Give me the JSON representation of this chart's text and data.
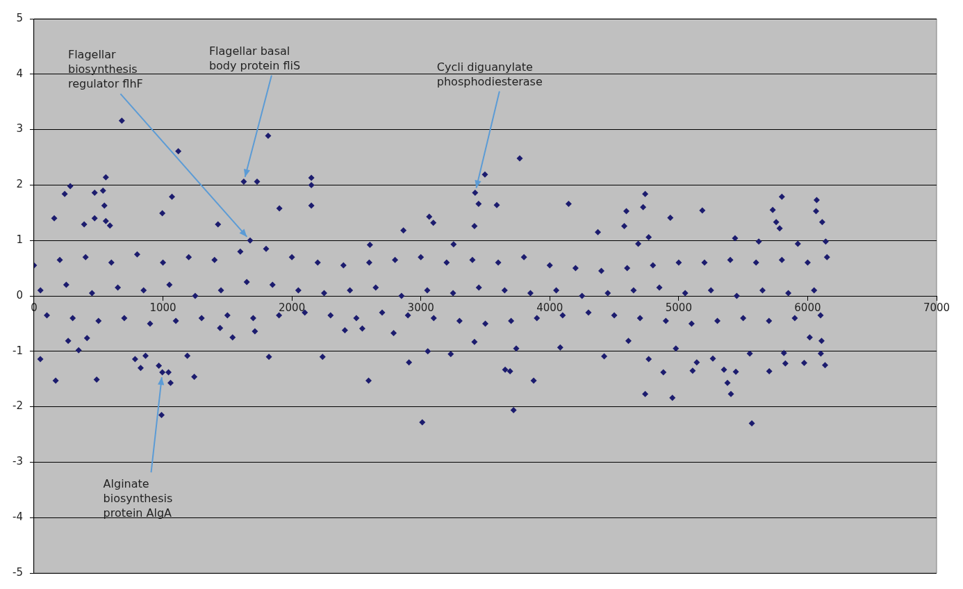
{
  "chart_data": {
    "type": "scatter",
    "marker": "diamond",
    "grid": "y",
    "legend": false,
    "xlim": [
      0,
      7000
    ],
    "xticks": [
      0,
      1000,
      2000,
      3000,
      4000,
      5000,
      6000,
      7000
    ],
    "ylim": [
      -5,
      5
    ],
    "yticks": [
      -5,
      -4,
      -3,
      -2,
      -1,
      0,
      1,
      2,
      3,
      4,
      5
    ],
    "annotations": [
      {
        "text": "Flagellar biosynthesis regulator flhF",
        "x": 1676,
        "y": 1.0
      },
      {
        "text": "Flagellar basal body protein fliS",
        "x": 1627,
        "y": 2.06
      },
      {
        "text": "Cycli diguanylate phosphodiesterase",
        "x": 3421,
        "y": 1.86
      },
      {
        "text": "Alginate biosynthesis protein AlgA",
        "x": 995,
        "y": -1.38
      }
    ],
    "series": [
      {
        "color": "#1c1c6e",
        "x": [
          681,
          1119,
          1816,
          1627,
          1730,
          2151,
          2151,
          2151,
          281,
          238,
          470,
          535,
          557,
          546,
          557,
          589,
          1070,
          995,
          157,
          389,
          470,
          1903,
          1427,
          3497,
          3767,
          3421,
          3448,
          3589,
          3416,
          3065,
          3097,
          2865,
          3254,
          4146,
          4578,
          4594,
          4724,
          4740,
          4935,
          5183,
          5437,
          5621,
          5756,
          5729,
          5800,
          5783,
          6070,
          6065,
          6113,
          4686,
          4767,
          4373,
          5924,
          6140,
          2605,
          1676,
          49,
          168,
          486,
          411,
          265,
          346,
          784,
          827,
          865,
          968,
          995,
          1043,
          1059,
          989,
          1243,
          1822,
          2238,
          1189,
          3011,
          2595,
          2908,
          3054,
          3719,
          3654,
          3692,
          3740,
          3875,
          4081,
          4422,
          4740,
          4767,
          4951,
          4881,
          5108,
          5140,
          5265,
          5351,
          5378,
          5405,
          5443,
          5567,
          5702,
          5816,
          5827,
          5973,
          6102,
          6108,
          6135,
          6016,
          5551,
          4978,
          4610,
          3232,
          3416,
          2789,
          2411,
          2546,
          1443,
          1540,
          1713,
          0,
          200,
          400,
          600,
          800,
          1000,
          1200,
          1400,
          1600,
          1800,
          2000,
          2200,
          2400,
          2600,
          2800,
          3000,
          3200,
          3400,
          3600,
          3800,
          4000,
          4200,
          4400,
          4600,
          4800,
          5000,
          5200,
          5400,
          5600,
          5800,
          6000,
          6150,
          100,
          300,
          500,
          700,
          900,
          1100,
          1300,
          1500,
          1700,
          1900,
          2100,
          2300,
          2500,
          2700,
          2900,
          3100,
          3300,
          3500,
          3700,
          3900,
          4100,
          4300,
          4500,
          4700,
          4900,
          5100,
          5300,
          5500,
          5700,
          5900,
          6100,
          50,
          250,
          450,
          650,
          850,
          1050,
          1250,
          1450,
          1650,
          1850,
          2050,
          2250,
          2450,
          2650,
          2850,
          3050,
          3250,
          3450,
          3650,
          3850,
          4050,
          4250,
          4450,
          4650,
          4850,
          5050,
          5250,
          5450,
          5650,
          5850,
          6050
        ],
        "values": [
          3.16,
          2.61,
          2.89,
          2.06,
          2.06,
          2.13,
          2.0,
          1.63,
          1.98,
          1.84,
          1.86,
          1.9,
          2.14,
          1.63,
          1.35,
          1.27,
          1.79,
          1.49,
          1.4,
          1.29,
          1.4,
          1.58,
          1.29,
          2.19,
          2.48,
          1.86,
          1.66,
          1.64,
          1.26,
          1.43,
          1.32,
          1.18,
          0.93,
          1.66,
          1.26,
          1.53,
          1.6,
          1.84,
          1.41,
          1.54,
          1.04,
          0.98,
          1.33,
          1.55,
          1.79,
          1.22,
          1.73,
          1.53,
          1.33,
          0.94,
          1.06,
          1.15,
          0.94,
          0.98,
          0.92,
          1.0,
          -1.14,
          -1.53,
          -1.51,
          -0.76,
          -0.81,
          -0.98,
          -1.14,
          -1.3,
          -1.08,
          -1.26,
          -1.38,
          -1.38,
          -1.57,
          -2.15,
          -1.46,
          -1.1,
          -1.1,
          -1.08,
          -2.28,
          -1.53,
          -1.2,
          -1.0,
          -2.06,
          -1.33,
          -1.36,
          -0.95,
          -1.53,
          -0.93,
          -1.09,
          -1.77,
          -1.14,
          -1.84,
          -1.38,
          -1.35,
          -1.2,
          -1.13,
          -1.33,
          -1.57,
          -1.77,
          -1.37,
          -2.3,
          -1.36,
          -1.03,
          -1.22,
          -1.21,
          -1.04,
          -0.81,
          -1.25,
          -0.75,
          -1.04,
          -0.95,
          -0.81,
          -1.05,
          -0.83,
          -0.67,
          -0.62,
          -0.59,
          -0.58,
          -0.75,
          -0.64,
          0.55,
          0.65,
          0.7,
          0.6,
          0.75,
          0.6,
          0.7,
          0.65,
          0.8,
          0.85,
          0.7,
          0.6,
          0.55,
          0.6,
          0.65,
          0.7,
          0.6,
          0.65,
          0.6,
          0.7,
          0.55,
          0.5,
          0.45,
          0.5,
          0.55,
          0.6,
          0.6,
          0.65,
          0.6,
          0.65,
          0.6,
          0.7,
          -0.35,
          -0.4,
          -0.45,
          -0.4,
          -0.5,
          -0.45,
          -0.4,
          -0.35,
          -0.4,
          -0.35,
          -0.3,
          -0.35,
          -0.4,
          -0.3,
          -0.35,
          -0.4,
          -0.45,
          -0.5,
          -0.45,
          -0.4,
          -0.35,
          -0.3,
          -0.35,
          -0.4,
          -0.45,
          -0.5,
          -0.45,
          -0.4,
          -0.45,
          -0.4,
          -0.35,
          0.1,
          0.2,
          0.05,
          0.15,
          0.1,
          0.2,
          0.0,
          0.1,
          0.25,
          0.2,
          0.1,
          0.05,
          0.1,
          0.15,
          0.0,
          0.1,
          0.05,
          0.15,
          0.1,
          0.05,
          0.1,
          0.0,
          0.05,
          0.1,
          0.15,
          0.05,
          0.1,
          0.0,
          0.1,
          0.05,
          0.1
        ]
      }
    ]
  }
}
